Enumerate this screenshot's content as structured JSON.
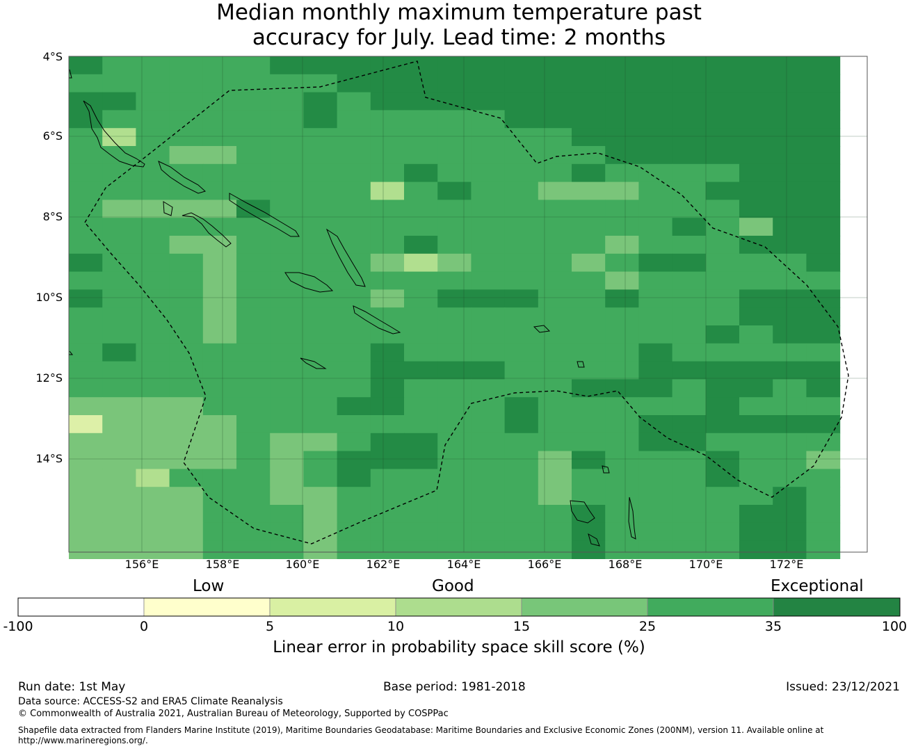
{
  "title": {
    "line1": "Median monthly maximum temperature past",
    "line2": "accuracy for July. Lead time: 2 months"
  },
  "map": {
    "lat_ticks": [
      "4°S",
      "6°S",
      "8°S",
      "10°S",
      "12°S",
      "14°S"
    ],
    "lon_ticks": [
      "156°E",
      "158°E",
      "160°E",
      "162°E",
      "164°E",
      "166°E",
      "168°E",
      "170°E",
      "172°E"
    ],
    "grid_colors": {
      "1": "#ddf0a8",
      "2": "#b1df8f",
      "3": "#7ac57a",
      "4": "#41ab5d",
      "5": "#238b45"
    },
    "grid": [
      "54444455555555555555555",
      "44444444555555555555555",
      "55444445455555555555555",
      "54444445444445555555555",
      "42444444444444455555555",
      "44433444444444445555555",
      "44444444445444454444555",
      "44444444424544333445555",
      "43333544444444444444555",
      "44444444444444444454355",
      "44433444445444443444555",
      "54443444432344434554445",
      "44443444444444443444444",
      "54443444434555445444555",
      "44443444444444444444555",
      "44443444444444444445455",
      "45444444454444444544444",
      "44444444455554444555555",
      "44444444454444455545545",
      "33334444554445444445444",
      "13333444444445444555555",
      "33333433455444444554444",
      "33333434555444354445443",
      "33244434544444344445444",
      "33334433444444344444454",
      "33334443444444454444554",
      "33334443444444454444554",
      "33334443444444454444554"
    ]
  },
  "legend": {
    "categories": [
      "Low",
      "Good",
      "Exceptional"
    ],
    "colors": [
      "#ffffff",
      "#ffffcc",
      "#d9f0a3",
      "#addd8e",
      "#78c679",
      "#41ab5d",
      "#238443"
    ],
    "ticks": [
      "-100",
      "0",
      "5",
      "10",
      "15",
      "25",
      "35",
      "100"
    ],
    "label": "Linear error in probability space skill score (%)"
  },
  "footer": {
    "run_date": "Run date: 1st May",
    "base_period": "Base period: 1981-2018",
    "issued": "Issued: 23/12/2021",
    "data_source": "Data source: ACCESS-S2 and ERA5 Climate Reanalysis",
    "copyright": "© Commonwealth of Australia 2021, Australian Bureau of Meteorology, Supported by COSPPac",
    "shapefile_line1": "Shapefile data extracted from Flanders Marine Institute (2019), Maritime Boundaries Geodatabase: Maritime Boundaries and Exclusive Economic Zones (200NM), version 11. Available online at",
    "shapefile_line2": "http://www.marineregions.org/."
  }
}
